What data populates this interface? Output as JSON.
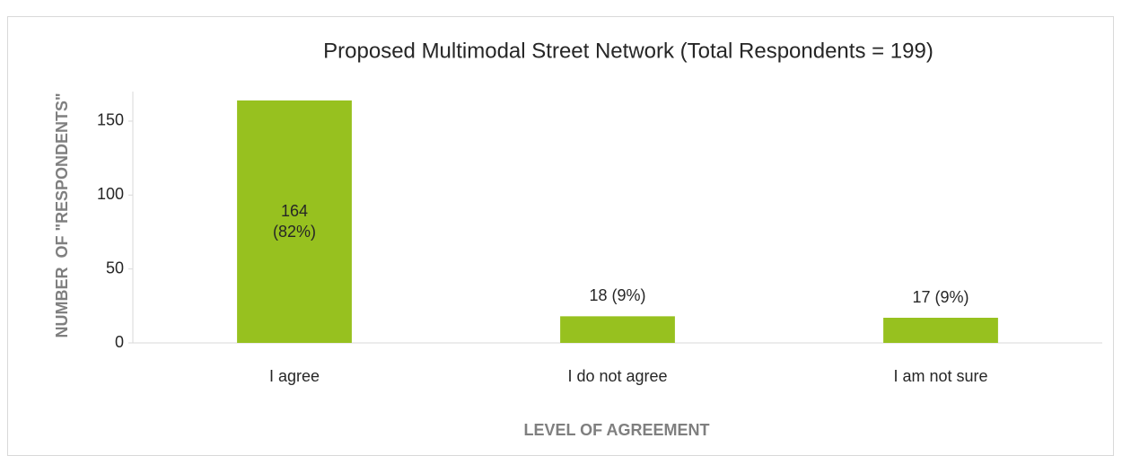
{
  "chart_data": {
    "type": "bar",
    "title": "Proposed Multimodal Street Network (Total Respondents = 199)",
    "x_label": "LEVEL OF AGREEMENT",
    "y_label": "NUMBER  OF \"RESPONDENTS\"",
    "categories": [
      "I agree",
      "I do not agree",
      "I am not sure"
    ],
    "values": [
      164,
      18,
      17
    ],
    "value_labels": [
      "164 (82%)",
      "18 (9%)",
      "17 (9%)"
    ],
    "color": "#97c11f",
    "ylim": [
      0,
      170
    ],
    "yticks": [
      0,
      50,
      100,
      150
    ],
    "grid": false
  }
}
